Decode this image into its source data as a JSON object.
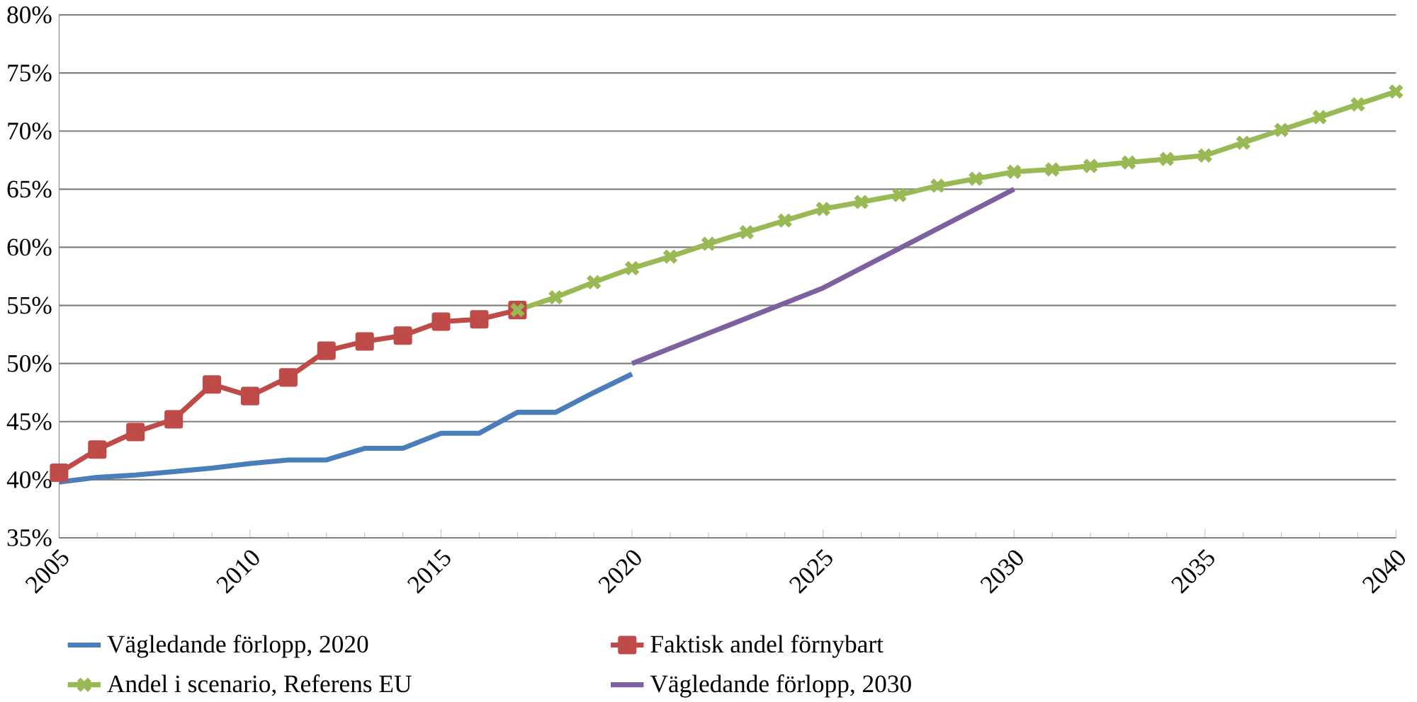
{
  "chart_data": {
    "type": "line",
    "x": [
      2005,
      2006,
      2007,
      2008,
      2009,
      2010,
      2011,
      2012,
      2013,
      2014,
      2015,
      2016,
      2017,
      2018,
      2019,
      2020
    ],
    "series": [
      {
        "name": "Vägledande förlopp, 2020",
        "color": "#4a7ebb",
        "marker": "none",
        "values": [
          39.8,
          40.2,
          40.4,
          40.7,
          41.0,
          41.4,
          41.7,
          41.7,
          42.7,
          42.7,
          44.0,
          44.0,
          45.8,
          45.8,
          47.5,
          49.1
        ]
      },
      {
        "name": "Faktisk andel förnybart",
        "color": "#be4b48",
        "marker": "square",
        "x": [
          2005,
          2006,
          2007,
          2008,
          2009,
          2010,
          2011,
          2012,
          2013,
          2014,
          2015,
          2016,
          2017
        ],
        "values": [
          40.6,
          42.6,
          44.1,
          45.2,
          48.2,
          47.2,
          48.8,
          51.1,
          51.9,
          52.4,
          53.6,
          53.8,
          54.6
        ]
      },
      {
        "name": "Andel i scenario, Referens EU",
        "color": "#98b954",
        "marker": "cross",
        "x": [
          2017,
          2018,
          2019,
          2020,
          2021,
          2022,
          2023,
          2024,
          2025,
          2026,
          2027,
          2028,
          2029,
          2030,
          2031,
          2032,
          2033,
          2034,
          2035,
          2036,
          2037,
          2038,
          2039,
          2040
        ],
        "values": [
          54.6,
          55.7,
          57.0,
          58.2,
          59.2,
          60.3,
          61.3,
          62.3,
          63.3,
          63.9,
          64.5,
          65.3,
          65.9,
          66.5,
          66.7,
          67.0,
          67.3,
          67.6,
          67.9,
          69.0,
          70.1,
          71.2,
          72.3,
          73.4
        ]
      },
      {
        "name": "Vägledande förlopp, 2030",
        "color": "#7d60a0",
        "marker": "none",
        "x": [
          2020,
          2025,
          2030
        ],
        "values": [
          50.0,
          56.5,
          65.0
        ]
      }
    ],
    "xlim": [
      2005,
      2040
    ],
    "xticks": [
      2005,
      2010,
      2015,
      2020,
      2025,
      2030,
      2035,
      2040
    ],
    "ylim": [
      35,
      80
    ],
    "yticks": [
      {
        "value": 35,
        "label": "35%"
      },
      {
        "value": 40,
        "label": "40%"
      },
      {
        "value": 45,
        "label": "45%"
      },
      {
        "value": 50,
        "label": "50%"
      },
      {
        "value": 55,
        "label": "55%"
      },
      {
        "value": 60,
        "label": "60%"
      },
      {
        "value": 65,
        "label": "65%"
      },
      {
        "value": 70,
        "label": "70%"
      },
      {
        "value": 75,
        "label": "75%"
      },
      {
        "value": 80,
        "label": "80%"
      }
    ],
    "grid": "y",
    "legend": "bottom"
  }
}
